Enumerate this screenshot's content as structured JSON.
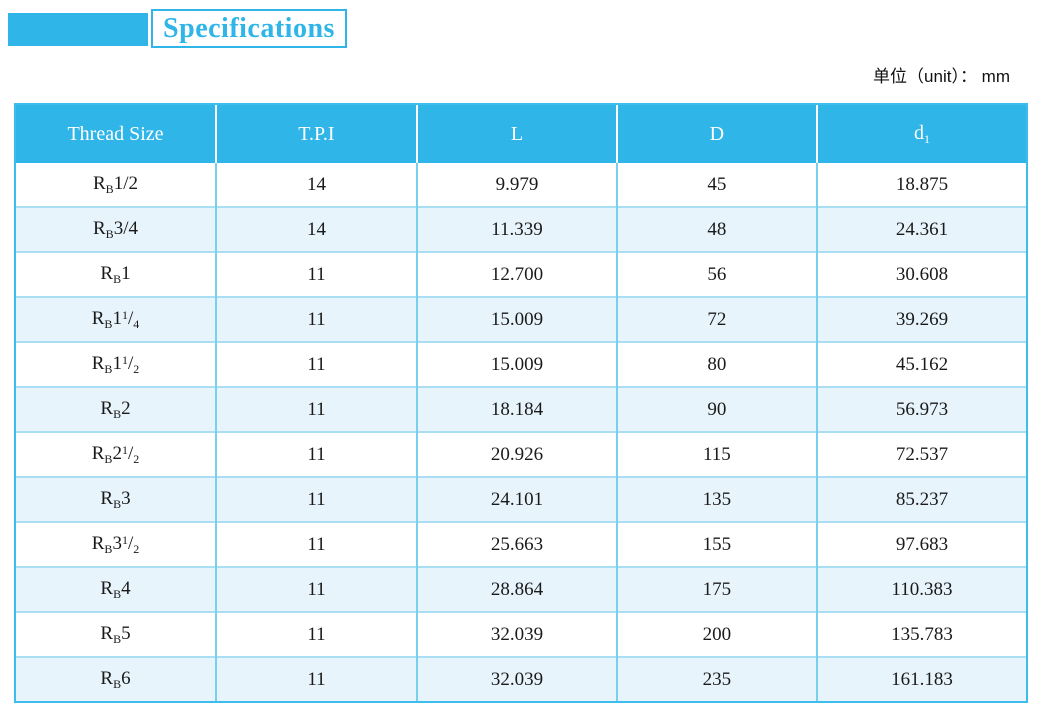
{
  "title": "Specifications",
  "unit_label": "单位（unit）： mm",
  "colors": {
    "accent": "#2fb5e8",
    "header_bg": "#2fb5e8",
    "header_text": "#ffffff",
    "row_bg": "#ffffff",
    "row_alt_bg": "#e8f4fc",
    "outer_border": "#3dbdeb",
    "horizontal_border": "#a9def3",
    "vertical_border": "#79cfef",
    "body_text": "#1a1a1a"
  },
  "table": {
    "columns": [
      {
        "label": "Thread Size"
      },
      {
        "label": "T.P.I"
      },
      {
        "label": "L"
      },
      {
        "label": "D"
      },
      {
        "label": "d",
        "sub": "1"
      }
    ],
    "rows": [
      {
        "thread": {
          "base": "R",
          "base_sub": "B",
          "size": "1/2"
        },
        "tpi": "14",
        "L": "9.979",
        "D": "45",
        "d1": "18.875"
      },
      {
        "thread": {
          "base": "R",
          "base_sub": "B",
          "size": "3/4"
        },
        "tpi": "14",
        "L": "11.339",
        "D": "48",
        "d1": "24.361"
      },
      {
        "thread": {
          "base": "R",
          "base_sub": "B",
          "size": "1"
        },
        "tpi": "11",
        "L": "12.700",
        "D": "56",
        "d1": "30.608"
      },
      {
        "thread": {
          "base": "R",
          "base_sub": "B",
          "size": "1",
          "frac": {
            "num": "1",
            "den": "4"
          }
        },
        "tpi": "11",
        "L": "15.009",
        "D": "72",
        "d1": "39.269"
      },
      {
        "thread": {
          "base": "R",
          "base_sub": "B",
          "size": "1",
          "frac": {
            "num": "1",
            "den": "2"
          }
        },
        "tpi": "11",
        "L": "15.009",
        "D": "80",
        "d1": "45.162"
      },
      {
        "thread": {
          "base": "R",
          "base_sub": "B",
          "size": "2"
        },
        "tpi": "11",
        "L": "18.184",
        "D": "90",
        "d1": "56.973"
      },
      {
        "thread": {
          "base": "R",
          "base_sub": "B",
          "size": "2",
          "frac": {
            "num": "1",
            "den": "2"
          }
        },
        "tpi": "11",
        "L": "20.926",
        "D": "115",
        "d1": "72.537"
      },
      {
        "thread": {
          "base": "R",
          "base_sub": "B",
          "size": "3"
        },
        "tpi": "11",
        "L": "24.101",
        "D": "135",
        "d1": "85.237"
      },
      {
        "thread": {
          "base": "R",
          "base_sub": "B",
          "size": "3",
          "frac": {
            "num": "1",
            "den": "2"
          }
        },
        "tpi": "11",
        "L": "25.663",
        "D": "155",
        "d1": "97.683"
      },
      {
        "thread": {
          "base": "R",
          "base_sub": "B",
          "size": "4"
        },
        "tpi": "11",
        "L": "28.864",
        "D": "175",
        "d1": "110.383"
      },
      {
        "thread": {
          "base": "R",
          "base_sub": "B",
          "size": "5"
        },
        "tpi": "11",
        "L": "32.039",
        "D": "200",
        "d1": "135.783"
      },
      {
        "thread": {
          "base": "R",
          "base_sub": "B",
          "size": "6"
        },
        "tpi": "11",
        "L": "32.039",
        "D": "235",
        "d1": "161.183"
      }
    ]
  }
}
